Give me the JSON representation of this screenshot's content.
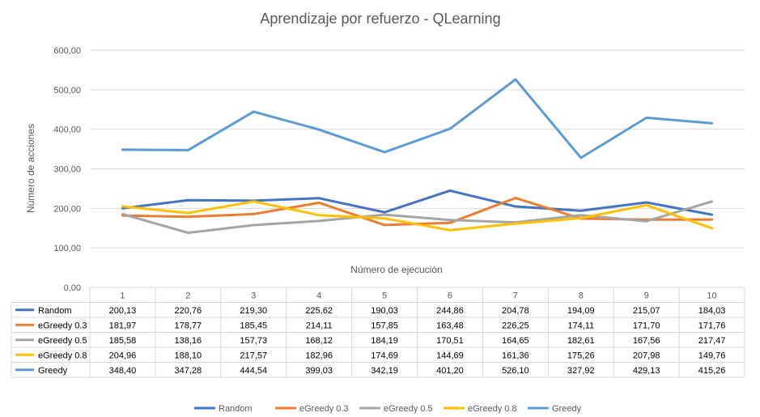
{
  "chart_data": {
    "type": "line",
    "title": "Aprendizaje por refuerzo - QLearning",
    "xlabel": "Número de ejecución",
    "ylabel": "Número de acciones",
    "categories": [
      "1",
      "2",
      "3",
      "4",
      "5",
      "6",
      "7",
      "8",
      "9",
      "10"
    ],
    "ylim": [
      0,
      600
    ],
    "yticks": [
      "0,00",
      "100,00",
      "200,00",
      "300,00",
      "400,00",
      "500,00",
      "600,00"
    ],
    "grid": true,
    "legend_position": "bottom",
    "data_table": true,
    "series": [
      {
        "name": "Random",
        "color": "#4472C4",
        "values": [
          200.13,
          220.76,
          219.3,
          225.62,
          190.03,
          244.86,
          204.78,
          194.09,
          215.07,
          184.03
        ],
        "labels": [
          "200,13",
          "220,76",
          "219,30",
          "225,62",
          "190,03",
          "244,86",
          "204,78",
          "194,09",
          "215,07",
          "184,03"
        ]
      },
      {
        "name": "eGreedy 0.3",
        "color": "#ED7D31",
        "values": [
          181.97,
          178.77,
          185.45,
          214.11,
          157.85,
          163.48,
          226.25,
          174.11,
          171.7,
          171.76
        ],
        "labels": [
          "181,97",
          "178,77",
          "185,45",
          "214,11",
          "157,85",
          "163,48",
          "226,25",
          "174,11",
          "171,70",
          "171,76"
        ]
      },
      {
        "name": "eGreedy 0.5",
        "color": "#A5A5A5",
        "values": [
          185.58,
          138.16,
          157.73,
          168.12,
          184.19,
          170.51,
          164.65,
          182.61,
          167.56,
          217.47
        ],
        "labels": [
          "185,58",
          "138,16",
          "157,73",
          "168,12",
          "184,19",
          "170,51",
          "164,65",
          "182,61",
          "167,56",
          "217,47"
        ]
      },
      {
        "name": "eGreedy 0.8",
        "color": "#FFC000",
        "values": [
          204.96,
          188.1,
          217.57,
          182.96,
          174.69,
          144.69,
          161.36,
          175.26,
          207.98,
          149.76
        ],
        "labels": [
          "204,96",
          "188,10",
          "217,57",
          "182,96",
          "174,69",
          "144,69",
          "161,36",
          "175,26",
          "207,98",
          "149,76"
        ]
      },
      {
        "name": "Greedy",
        "color": "#5B9BD5",
        "values": [
          348.4,
          347.28,
          444.54,
          399.03,
          342.19,
          401.2,
          526.1,
          327.92,
          429.13,
          415.26
        ],
        "labels": [
          "348,40",
          "347,28",
          "444,54",
          "399,03",
          "342,19",
          "401,20",
          "526,10",
          "327,92",
          "429,13",
          "415,26"
        ]
      }
    ]
  }
}
